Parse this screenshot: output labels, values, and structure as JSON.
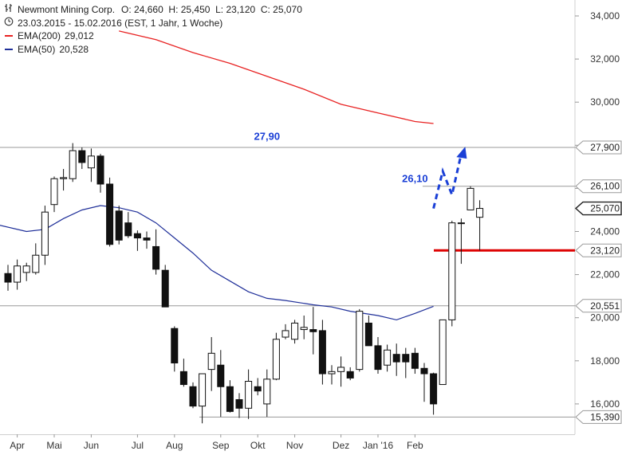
{
  "header": {
    "instrument": "Newmont Mining Corp.",
    "ohlc": "O: 24,660  H: 25,450  L: 23,120  C: 25,070",
    "range": "23.03.2015 - 15.02.2016 (EST, 1 Jahr, 1 Woche)",
    "ema200_label": "EMA(200)",
    "ema200_value": "29,012",
    "ema50_label": "EMA(50)",
    "ema50_value": "20,528"
  },
  "colors": {
    "ema200": "#e82222",
    "ema50": "#1f2f99",
    "support_line": "#dd0000",
    "projection": "#1a3fd6",
    "annotation_text": "#1a3fd6"
  },
  "chart_data": {
    "type": "candlestick",
    "ylim": [
      14500,
      34500
    ],
    "y_ticks": [
      "16,000",
      "18,000",
      "20,000",
      "22,000",
      "24,000",
      "26,000",
      "28,000",
      "30,000",
      "32,000",
      "34,000"
    ],
    "y_tick_values": [
      16000,
      18000,
      20000,
      22000,
      24000,
      26000,
      28000,
      30000,
      32000,
      34000
    ],
    "x_labels": [
      "Apr",
      "Mai",
      "Jun",
      "Jul",
      "Aug",
      "Sep",
      "Okt",
      "Nov",
      "Dez",
      "Jan '16",
      "Feb"
    ],
    "x_label_index": [
      1,
      5,
      9,
      14,
      18,
      23,
      27,
      31,
      36,
      40,
      44
    ],
    "candles": [
      {
        "o": 22.05,
        "h": 22.45,
        "l": 21.25,
        "c": 21.65
      },
      {
        "o": 21.65,
        "h": 22.7,
        "l": 21.3,
        "c": 22.4
      },
      {
        "o": 22.1,
        "h": 22.55,
        "l": 21.7,
        "c": 22.4
      },
      {
        "o": 22.1,
        "h": 23.45,
        "l": 22.0,
        "c": 22.9
      },
      {
        "o": 22.9,
        "h": 25.2,
        "l": 22.45,
        "c": 24.9
      },
      {
        "o": 25.25,
        "h": 26.55,
        "l": 24.9,
        "c": 26.45
      },
      {
        "o": 26.45,
        "h": 26.9,
        "l": 25.9,
        "c": 26.5
      },
      {
        "o": 26.45,
        "h": 28.1,
        "l": 26.3,
        "c": 27.75
      },
      {
        "o": 27.75,
        "h": 27.9,
        "l": 26.9,
        "c": 27.2
      },
      {
        "o": 26.95,
        "h": 27.85,
        "l": 26.3,
        "c": 27.5
      },
      {
        "o": 27.5,
        "h": 27.6,
        "l": 25.8,
        "c": 26.2
      },
      {
        "o": 26.2,
        "h": 26.5,
        "l": 23.3,
        "c": 23.4
      },
      {
        "o": 24.95,
        "h": 25.2,
        "l": 23.4,
        "c": 23.6
      },
      {
        "o": 24.4,
        "h": 24.9,
        "l": 23.7,
        "c": 23.8
      },
      {
        "o": 23.9,
        "h": 24.05,
        "l": 23.1,
        "c": 23.7
      },
      {
        "o": 23.7,
        "h": 24.0,
        "l": 23.2,
        "c": 23.6
      },
      {
        "o": 23.3,
        "h": 24.1,
        "l": 22.0,
        "c": 22.25
      },
      {
        "o": 22.2,
        "h": 22.45,
        "l": 20.5,
        "c": 20.5
      },
      {
        "o": 19.5,
        "h": 19.6,
        "l": 17.5,
        "c": 17.9
      },
      {
        "o": 17.5,
        "h": 18.1,
        "l": 16.8,
        "c": 16.9
      },
      {
        "o": 16.8,
        "h": 17.0,
        "l": 15.8,
        "c": 15.9
      },
      {
        "o": 15.9,
        "h": 17.4,
        "l": 15.1,
        "c": 17.4
      },
      {
        "o": 17.6,
        "h": 19.1,
        "l": 16.6,
        "c": 18.35
      },
      {
        "o": 17.8,
        "h": 18.5,
        "l": 15.4,
        "c": 16.8
      },
      {
        "o": 16.8,
        "h": 17.1,
        "l": 15.6,
        "c": 15.65
      },
      {
        "o": 16.2,
        "h": 16.5,
        "l": 15.35,
        "c": 15.8
      },
      {
        "o": 15.8,
        "h": 17.6,
        "l": 15.3,
        "c": 17.05
      },
      {
        "o": 16.8,
        "h": 17.2,
        "l": 16.4,
        "c": 16.6
      },
      {
        "o": 16.0,
        "h": 17.6,
        "l": 15.4,
        "c": 17.15
      },
      {
        "o": 17.15,
        "h": 19.3,
        "l": 17.1,
        "c": 19.0
      },
      {
        "o": 19.1,
        "h": 19.7,
        "l": 19.0,
        "c": 19.4
      },
      {
        "o": 19.0,
        "h": 19.9,
        "l": 18.8,
        "c": 19.75
      },
      {
        "o": 19.45,
        "h": 20.1,
        "l": 19.0,
        "c": 19.55
      },
      {
        "o": 19.45,
        "h": 20.5,
        "l": 18.3,
        "c": 19.35
      },
      {
        "o": 19.4,
        "h": 19.9,
        "l": 16.9,
        "c": 17.4
      },
      {
        "o": 17.4,
        "h": 17.8,
        "l": 16.9,
        "c": 17.5
      },
      {
        "o": 17.5,
        "h": 18.2,
        "l": 16.8,
        "c": 17.7
      },
      {
        "o": 17.5,
        "h": 17.7,
        "l": 17.1,
        "c": 17.2
      },
      {
        "o": 17.6,
        "h": 20.4,
        "l": 17.5,
        "c": 20.3
      },
      {
        "o": 19.75,
        "h": 20.1,
        "l": 18.7,
        "c": 18.7
      },
      {
        "o": 18.7,
        "h": 19.1,
        "l": 17.4,
        "c": 17.6
      },
      {
        "o": 17.8,
        "h": 18.75,
        "l": 17.5,
        "c": 18.5
      },
      {
        "o": 18.3,
        "h": 18.8,
        "l": 17.3,
        "c": 17.95
      },
      {
        "o": 18.3,
        "h": 18.6,
        "l": 17.2,
        "c": 17.95
      },
      {
        "o": 18.35,
        "h": 18.6,
        "l": 17.4,
        "c": 17.65
      },
      {
        "o": 17.65,
        "h": 17.9,
        "l": 16.1,
        "c": 17.4
      },
      {
        "o": 17.4,
        "h": 17.45,
        "l": 15.5,
        "c": 16.0
      },
      {
        "o": 16.9,
        "h": 19.9,
        "l": 16.9,
        "c": 19.9
      },
      {
        "o": 19.9,
        "h": 24.5,
        "l": 19.6,
        "c": 24.4
      },
      {
        "o": 24.4,
        "h": 24.6,
        "l": 22.5,
        "c": 24.4
      },
      {
        "o": 25.0,
        "h": 26.1,
        "l": 25.3,
        "c": 26.0
      },
      {
        "o": 24.66,
        "h": 25.45,
        "l": 23.12,
        "c": 25.07
      }
    ],
    "ema200": [
      [
        12,
        33.3
      ],
      [
        16,
        32.9
      ],
      [
        20,
        32.3
      ],
      [
        24,
        31.8
      ],
      [
        28,
        31.2
      ],
      [
        32,
        30.6
      ],
      [
        36,
        29.9
      ],
      [
        40,
        29.5
      ],
      [
        44,
        29.1
      ],
      [
        46,
        29.01
      ]
    ],
    "ema50": [
      [
        -1,
        24.3
      ],
      [
        2,
        24.0
      ],
      [
        4,
        24.1
      ],
      [
        6,
        24.6
      ],
      [
        8,
        25.0
      ],
      [
        10,
        25.2
      ],
      [
        12,
        25.1
      ],
      [
        14,
        24.9
      ],
      [
        16,
        24.4
      ],
      [
        18,
        23.7
      ],
      [
        20,
        23.0
      ],
      [
        22,
        22.2
      ],
      [
        24,
        21.7
      ],
      [
        26,
        21.2
      ],
      [
        28,
        20.9
      ],
      [
        30,
        20.8
      ],
      [
        33,
        20.6
      ],
      [
        35,
        20.5
      ],
      [
        37,
        20.3
      ],
      [
        40,
        20.1
      ],
      [
        42,
        19.9
      ],
      [
        44,
        20.2
      ],
      [
        46,
        20.53
      ]
    ],
    "h_lines": [
      {
        "name": "res-27900",
        "value": 27.9
      },
      {
        "name": "res-26100",
        "value": 26.1
      },
      {
        "name": "sup-20551",
        "value": 20.551
      },
      {
        "name": "sup-15390",
        "value": 15.39
      }
    ],
    "support_23120": 23.12,
    "projection": [
      [
        46,
        25.07
      ],
      [
        47,
        26.8
      ],
      [
        48,
        25.7
      ],
      [
        49,
        27.6
      ]
    ],
    "price_tags": [
      {
        "name": "tag-27900",
        "value": 27.9,
        "label": "27,900",
        "style": "outline"
      },
      {
        "name": "tag-26100",
        "value": 26.1,
        "label": "26,100",
        "style": "outline"
      },
      {
        "name": "tag-25070",
        "value": 25.07,
        "label": "25,070",
        "style": "outline-dark"
      },
      {
        "name": "tag-23120",
        "value": 23.12,
        "label": "23,120",
        "style": "outline"
      },
      {
        "name": "tag-20551",
        "value": 20.551,
        "label": "20,551",
        "style": "outline"
      },
      {
        "name": "tag-15390",
        "value": 15.39,
        "label": "15,390",
        "style": "outline"
      }
    ],
    "annotations": [
      {
        "name": "label-27-90",
        "text": "27,90",
        "x": 28,
        "y": 28.25
      },
      {
        "name": "label-26-10",
        "text": "26,10",
        "x": 44,
        "y": 26.3
      }
    ]
  }
}
